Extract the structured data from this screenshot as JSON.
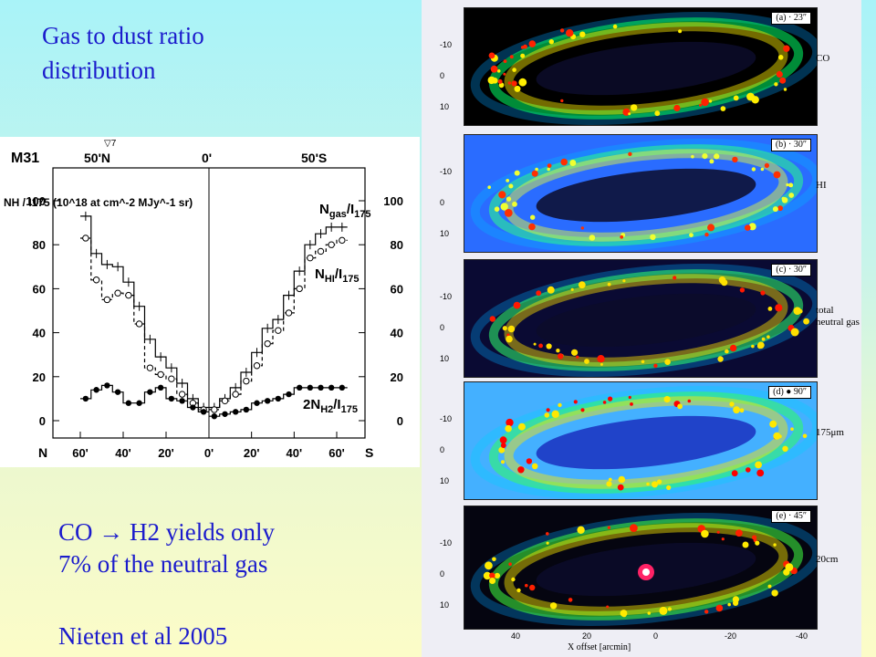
{
  "slide": {
    "title_line1": "Gas to dust ratio",
    "title_line2": "distribution",
    "bullet1_line1": "CO → H2 yields only",
    "bullet1_line2": "7% of the neutral gas",
    "citation": "Nieten et al 2005"
  },
  "colors": {
    "text_blue": "#1b1bcc",
    "map_bg": "#000000"
  },
  "chart_data": {
    "type": "line",
    "title": "M31",
    "top_labels": {
      "left": "50'N",
      "center": "0'",
      "right": "50'S",
      "marker": "▽7"
    },
    "ylabel_left": "NH / I175 (10^18 at cm^-2 MJy^-1 sr)",
    "ytick_labels": [
      "0",
      "20",
      "40",
      "60",
      "80",
      "100"
    ],
    "ylim": [
      0,
      105
    ],
    "x_north": {
      "label": "N",
      "ticks": [
        "60'",
        "40'",
        "20'",
        "0'"
      ],
      "range": [
        60,
        0
      ]
    },
    "x_south": {
      "label": "S",
      "ticks": [
        "0'",
        "20'",
        "40'",
        "60'"
      ],
      "range": [
        0,
        60
      ]
    },
    "series": [
      {
        "name": "Ngas/I175",
        "label_main": "N",
        "label_sub": "gas",
        "label_rest": "/I",
        "label_rest_sub": "175",
        "style": "solid-step",
        "north_x": [
          60,
          55,
          50,
          45,
          40,
          35,
          30,
          25,
          20,
          15,
          10,
          5
        ],
        "north_y": [
          93,
          76,
          71,
          70,
          63,
          52,
          37,
          29,
          24,
          17,
          10,
          6
        ],
        "south_x": [
          0,
          5,
          10,
          15,
          20,
          25,
          30,
          35,
          40,
          45,
          50,
          55,
          60
        ],
        "south_y": [
          6,
          10,
          15,
          22,
          31,
          42,
          46,
          57,
          68,
          80,
          85,
          88,
          88
        ]
      },
      {
        "name": "NHI/I175",
        "label_main": "N",
        "label_sub": "HI",
        "label_rest": "/I",
        "label_rest_sub": "175",
        "style": "dashed-circles",
        "north_x": [
          60,
          55,
          50,
          45,
          40,
          35,
          30,
          25,
          20,
          15,
          10,
          5
        ],
        "north_y": [
          83,
          64,
          55,
          58,
          57,
          44,
          24,
          21,
          19,
          12,
          8,
          5
        ],
        "south_x": [
          0,
          5,
          10,
          15,
          20,
          25,
          30,
          35,
          40,
          45,
          50,
          55,
          60
        ],
        "south_y": [
          5,
          9,
          12,
          18,
          25,
          35,
          41,
          49,
          60,
          74,
          77,
          80,
          82
        ]
      },
      {
        "name": "2NH2/I175",
        "label_main": "2N",
        "label_sub": "H2",
        "label_rest": "/I",
        "label_rest_sub": "175",
        "style": "solid-dots",
        "north_x": [
          60,
          55,
          50,
          45,
          40,
          35,
          30,
          25,
          20,
          15,
          10,
          5
        ],
        "north_y": [
          10,
          14,
          16,
          13,
          8,
          8,
          13,
          15,
          10,
          9,
          6,
          4
        ],
        "south_x": [
          0,
          5,
          10,
          15,
          20,
          25,
          30,
          35,
          40,
          45,
          50,
          55,
          60
        ],
        "south_y": [
          2,
          3,
          4,
          5,
          8,
          9,
          10,
          12,
          15,
          15,
          15,
          15,
          15
        ]
      }
    ]
  },
  "maps": {
    "panels": [
      {
        "tag": "(a) · 23″",
        "side_label": "CO",
        "ticks": [
          "-10",
          "0",
          "10"
        ]
      },
      {
        "tag": "(b) · 30″",
        "side_label": "HI",
        "ticks": [
          "-10",
          "0",
          "10"
        ]
      },
      {
        "tag": "(c) · 30″",
        "side_label": "total neutral gas",
        "ticks": [
          "-10",
          "0",
          "10"
        ]
      },
      {
        "tag": "(d) ● 90″",
        "side_label": "175μm",
        "ticks": [
          "-10",
          "0",
          "10"
        ]
      },
      {
        "tag": "(e) · 45″",
        "side_label": "20cm",
        "ticks": [
          "-10",
          "0",
          "10"
        ]
      }
    ],
    "x_ticks": [
      "40",
      "20",
      "0",
      "-20",
      "-40"
    ],
    "x_label": "X offset [arcmin]"
  }
}
